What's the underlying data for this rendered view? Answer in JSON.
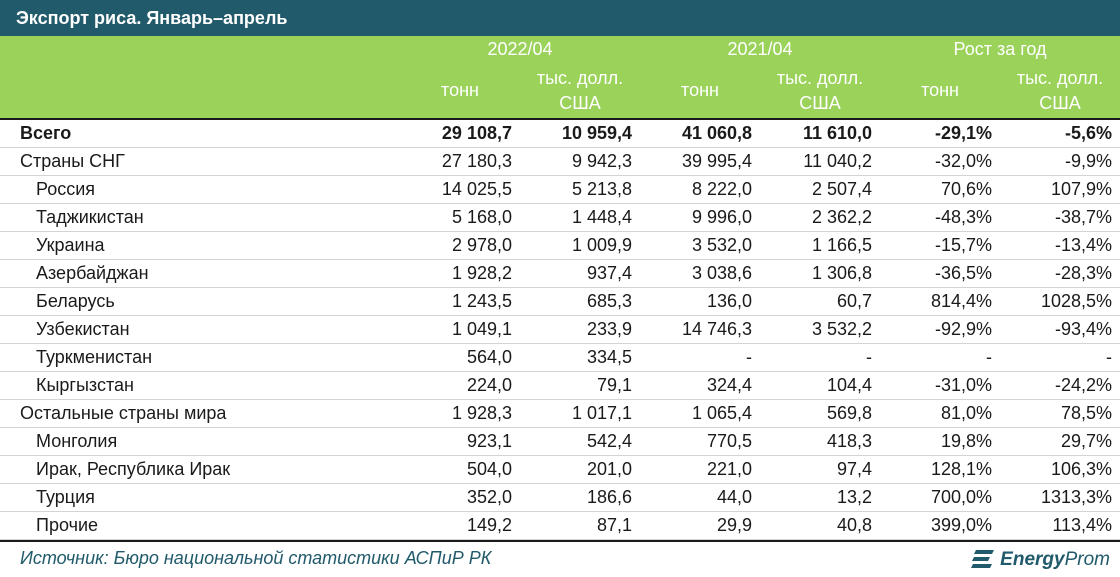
{
  "title": "Экспорт риса. Январь–апрель",
  "header": {
    "period1": "2022/04",
    "period2": "2021/04",
    "growth": "Рост за год",
    "unit_tonn": "тонн",
    "unit_usd_line1": "тыс. долл.",
    "unit_usd_line2": "США"
  },
  "rows": [
    {
      "name": "Всего",
      "v": [
        "29 108,7",
        "10 959,4",
        "41 060,8",
        "11 610,0",
        "-29,1%",
        "-5,6%"
      ]
    },
    {
      "name": "Страны СНГ",
      "v": [
        "27 180,3",
        "9 942,3",
        "39 995,4",
        "11 040,2",
        "-32,0%",
        "-9,9%"
      ]
    },
    {
      "name": "Россия",
      "v": [
        "14 025,5",
        "5 213,8",
        "8 222,0",
        "2 507,4",
        "70,6%",
        "107,9%"
      ]
    },
    {
      "name": "Таджикистан",
      "v": [
        "5 168,0",
        "1 448,4",
        "9 996,0",
        "2 362,2",
        "-48,3%",
        "-38,7%"
      ]
    },
    {
      "name": "Украина",
      "v": [
        "2 978,0",
        "1 009,9",
        "3 532,0",
        "1 166,5",
        "-15,7%",
        "-13,4%"
      ]
    },
    {
      "name": "Азербайджан",
      "v": [
        "1 928,2",
        "937,4",
        "3 038,6",
        "1 306,8",
        "-36,5%",
        "-28,3%"
      ]
    },
    {
      "name": "Беларусь",
      "v": [
        "1 243,5",
        "685,3",
        "136,0",
        "60,7",
        "814,4%",
        "1028,5%"
      ]
    },
    {
      "name": "Узбекистан",
      "v": [
        "1 049,1",
        "233,9",
        "14 746,3",
        "3 532,2",
        "-92,9%",
        "-93,4%"
      ]
    },
    {
      "name": "Туркменистан",
      "v": [
        "564,0",
        "334,5",
        "-",
        "-",
        "-",
        "-"
      ]
    },
    {
      "name": "Кыргызстан",
      "v": [
        "224,0",
        "79,1",
        "324,4",
        "104,4",
        "-31,0%",
        "-24,2%"
      ]
    },
    {
      "name": "Остальные страны мира",
      "v": [
        "1 928,3",
        "1 017,1",
        "1 065,4",
        "569,8",
        "81,0%",
        "78,5%"
      ]
    },
    {
      "name": "Монголия",
      "v": [
        "923,1",
        "542,4",
        "770,5",
        "418,3",
        "19,8%",
        "29,7%"
      ]
    },
    {
      "name": "Ирак, Республика Ирак",
      "v": [
        "504,0",
        "201,0",
        "221,0",
        "97,4",
        "128,1%",
        "106,3%"
      ]
    },
    {
      "name": "Турция",
      "v": [
        "352,0",
        "186,6",
        "44,0",
        "13,2",
        "700,0%",
        "1313,3%"
      ]
    },
    {
      "name": "Прочие",
      "v": [
        "149,2",
        "87,1",
        "29,9",
        "40,8",
        "399,0%",
        "113,4%"
      ]
    }
  ],
  "footer": {
    "source": "Источник: Бюро национальной статистики АСПиР РК",
    "logo_bold": "Energy",
    "logo_light": "Prom",
    "logo_icon": "energyprom-logo-icon"
  }
}
